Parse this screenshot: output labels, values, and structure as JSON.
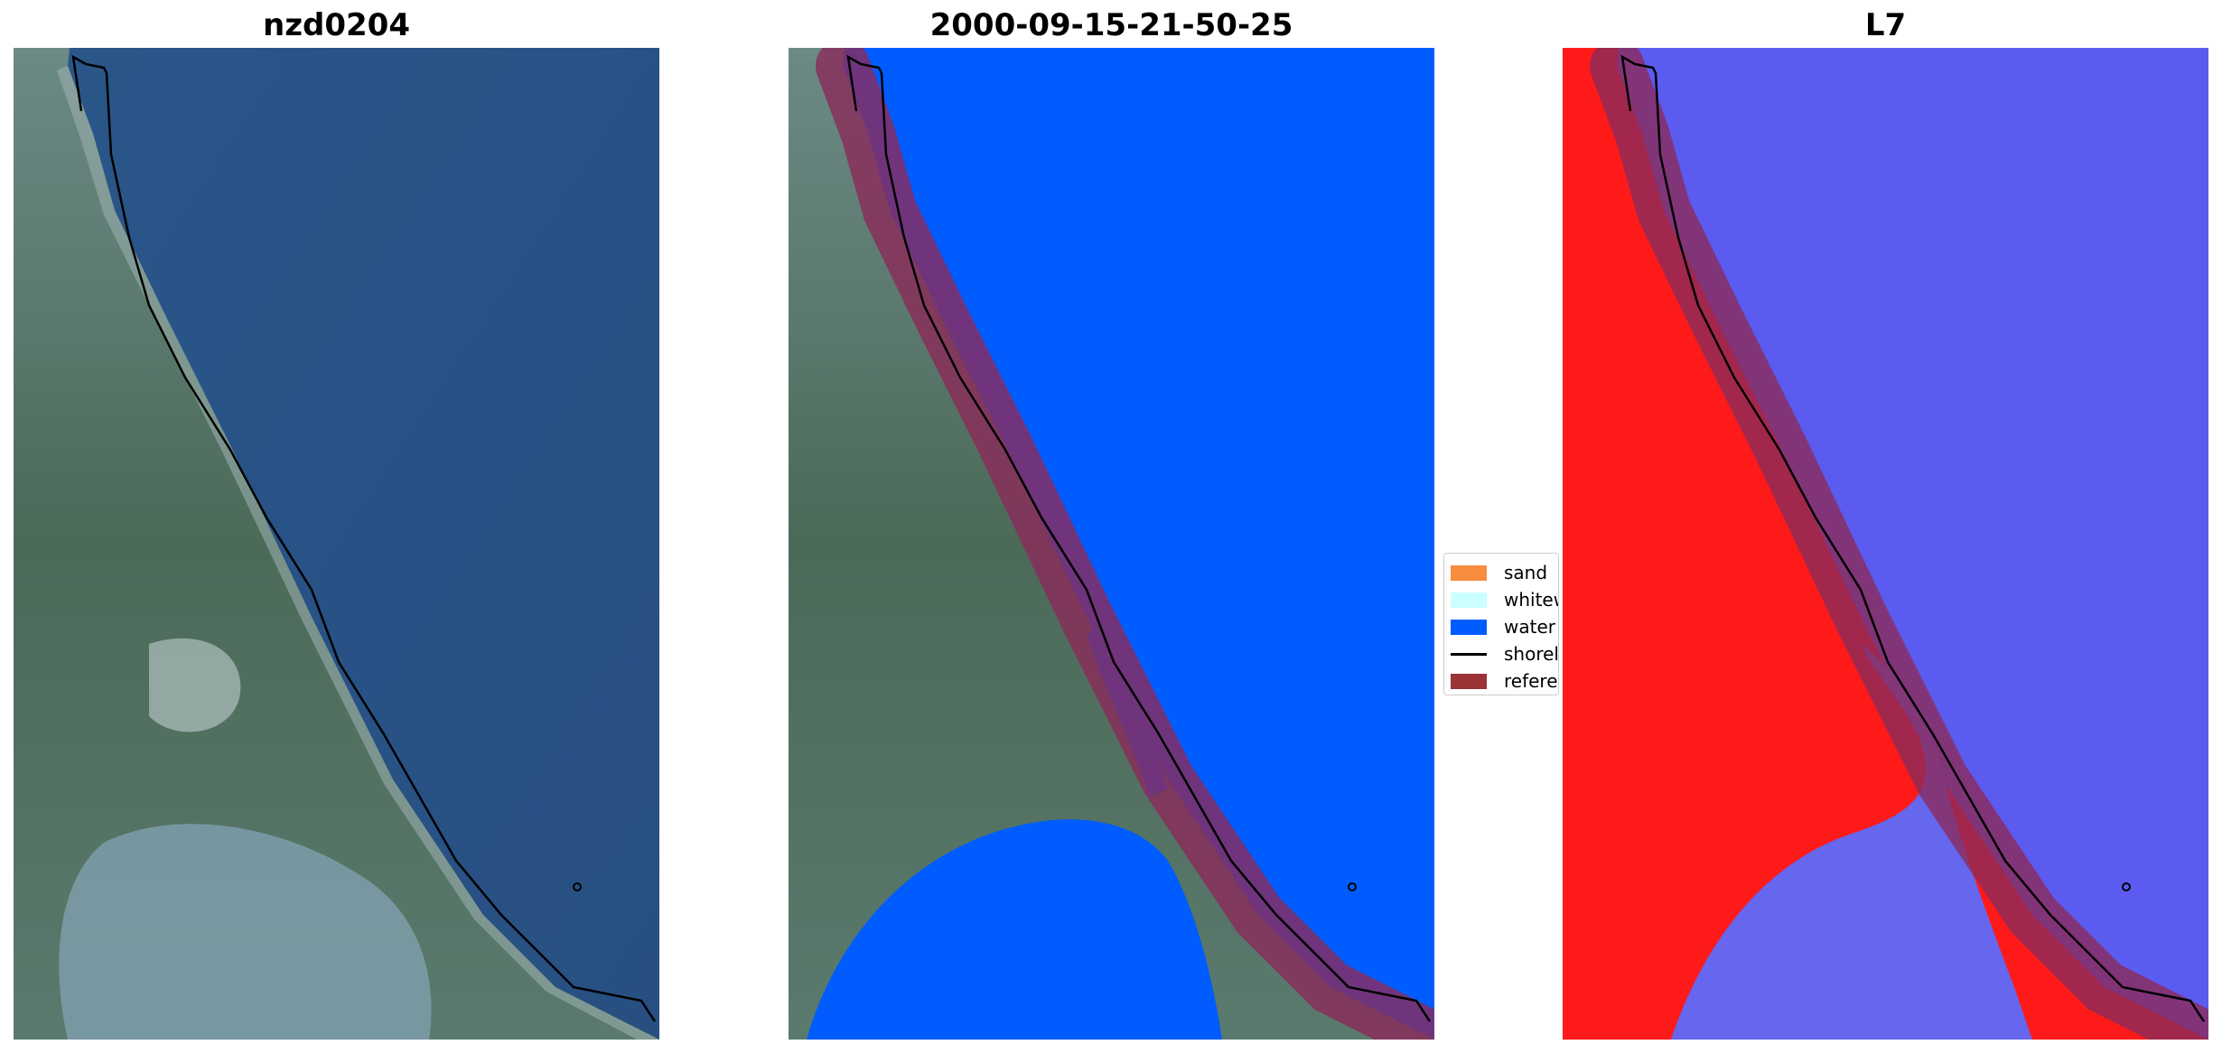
{
  "panels": [
    {
      "title": "nzd0204"
    },
    {
      "title": "2000-09-15-21-50-25"
    },
    {
      "title": "L7"
    }
  ],
  "legend": {
    "position": "center",
    "items": [
      {
        "label": "sand",
        "color": "#f98d3e",
        "kind": "patch"
      },
      {
        "label": "whitew",
        "color": "#ccffff",
        "kind": "patch"
      },
      {
        "label": "water",
        "color": "#005cff",
        "kind": "patch"
      },
      {
        "label": "shoreli",
        "color": "#000000",
        "kind": "line"
      },
      {
        "label": "referen",
        "color": "#9b3337",
        "kind": "patch"
      }
    ]
  },
  "colors": {
    "ocean_rgb": "#2f5a8a",
    "land_rgb": "#4f6f5a",
    "water_class": "#005cff",
    "reference_buffer": "#8b2a5a",
    "index_land": "#ff1a1a",
    "index_water": "#5b5bf0"
  }
}
